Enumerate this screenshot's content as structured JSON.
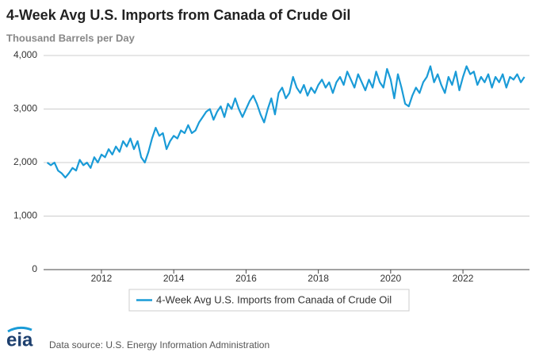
{
  "chart_data": {
    "type": "line",
    "title": "4-Week Avg U.S. Imports from Canada of Crude Oil",
    "subtitle": "Thousand Barrels per Day",
    "source": "Data source: U.S. Energy Information Administration",
    "logo": "eia",
    "xlim": [
      2010.4,
      2023.84
    ],
    "xticks": [
      2012,
      2014,
      2016,
      2018,
      2020,
      2022
    ],
    "ylim": [
      0,
      4000
    ],
    "yticks": [
      0,
      {
        "value": 1000,
        "label": "1,000"
      },
      {
        "value": 2000,
        "label": "2,000"
      },
      {
        "value": 3000,
        "label": "3,000"
      },
      {
        "value": 4000,
        "label": "4,000"
      }
    ],
    "grid": true,
    "legend": "bottom",
    "x": [
      2010.5,
      2010.6,
      2010.7,
      2010.8,
      2010.9,
      2011.0,
      2011.1,
      2011.2,
      2011.3,
      2011.4,
      2011.5,
      2011.6,
      2011.7,
      2011.8,
      2011.9,
      2012.0,
      2012.1,
      2012.2,
      2012.3,
      2012.4,
      2012.5,
      2012.6,
      2012.7,
      2012.8,
      2012.9,
      2013.0,
      2013.1,
      2013.2,
      2013.3,
      2013.4,
      2013.5,
      2013.6,
      2013.7,
      2013.8,
      2013.9,
      2014.0,
      2014.1,
      2014.2,
      2014.3,
      2014.4,
      2014.5,
      2014.6,
      2014.7,
      2014.8,
      2014.9,
      2015.0,
      2015.1,
      2015.2,
      2015.3,
      2015.4,
      2015.5,
      2015.6,
      2015.7,
      2015.8,
      2015.9,
      2016.0,
      2016.1,
      2016.2,
      2016.3,
      2016.4,
      2016.5,
      2016.6,
      2016.7,
      2016.8,
      2016.9,
      2017.0,
      2017.1,
      2017.2,
      2017.3,
      2017.4,
      2017.5,
      2017.6,
      2017.7,
      2017.8,
      2017.9,
      2018.0,
      2018.1,
      2018.2,
      2018.3,
      2018.4,
      2018.5,
      2018.6,
      2018.7,
      2018.8,
      2018.9,
      2019.0,
      2019.1,
      2019.2,
      2019.3,
      2019.4,
      2019.5,
      2019.6,
      2019.7,
      2019.8,
      2019.9,
      2020.0,
      2020.1,
      2020.2,
      2020.3,
      2020.4,
      2020.5,
      2020.6,
      2020.7,
      2020.8,
      2020.9,
      2021.0,
      2021.1,
      2021.2,
      2021.3,
      2021.4,
      2021.5,
      2021.6,
      2021.7,
      2021.8,
      2021.9,
      2022.0,
      2022.1,
      2022.2,
      2022.3,
      2022.4,
      2022.5,
      2022.6,
      2022.7,
      2022.8,
      2022.9,
      2023.0,
      2023.1,
      2023.2,
      2023.3,
      2023.4,
      2023.5,
      2023.6,
      2023.7
    ],
    "series": [
      {
        "name": "4-Week Avg U.S. Imports from Canada of Crude Oil",
        "color": "#1a9bd7",
        "values": [
          2000,
          1950,
          2000,
          1850,
          1800,
          1720,
          1800,
          1900,
          1850,
          2050,
          1950,
          2000,
          1900,
          2100,
          2000,
          2150,
          2100,
          2250,
          2150,
          2300,
          2200,
          2400,
          2300,
          2450,
          2250,
          2400,
          2100,
          2000,
          2200,
          2450,
          2650,
          2500,
          2550,
          2250,
          2400,
          2500,
          2450,
          2600,
          2550,
          2700,
          2550,
          2600,
          2750,
          2850,
          2950,
          3000,
          2800,
          2950,
          3050,
          2850,
          3100,
          3000,
          3200,
          3000,
          2850,
          3000,
          3150,
          3250,
          3100,
          2900,
          2750,
          3000,
          3200,
          2900,
          3300,
          3400,
          3200,
          3300,
          3600,
          3400,
          3300,
          3450,
          3250,
          3400,
          3300,
          3450,
          3550,
          3400,
          3500,
          3300,
          3500,
          3600,
          3450,
          3700,
          3550,
          3400,
          3650,
          3500,
          3350,
          3550,
          3400,
          3700,
          3500,
          3400,
          3750,
          3550,
          3200,
          3650,
          3400,
          3100,
          3050,
          3250,
          3400,
          3300,
          3500,
          3600,
          3800,
          3500,
          3650,
          3450,
          3300,
          3600,
          3450,
          3700,
          3350,
          3600,
          3800,
          3650,
          3700,
          3450,
          3600,
          3500,
          3650,
          3400,
          3600,
          3500,
          3650,
          3400,
          3600,
          3550,
          3650,
          3500,
          3600
        ]
      }
    ]
  }
}
